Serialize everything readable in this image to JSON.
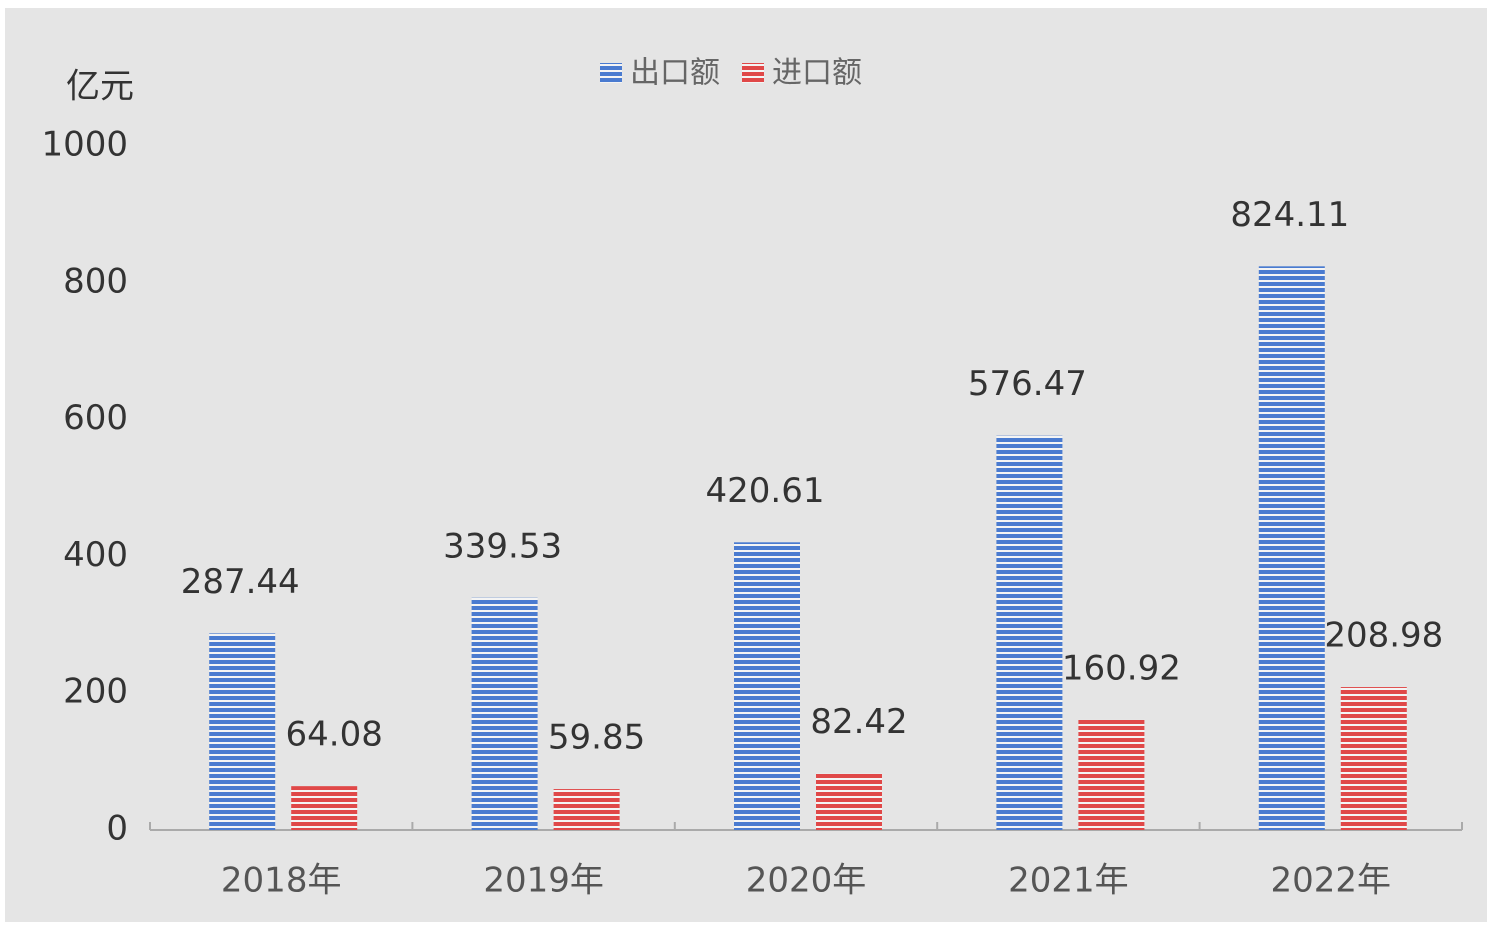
{
  "chart_data": {
    "type": "bar",
    "y_label": "亿元",
    "categories": [
      "2018年",
      "2019年",
      "2020年",
      "2021年",
      "2022年"
    ],
    "series": [
      {
        "name": "出口额",
        "color": "#4a7bd0",
        "values": [
          287.44,
          339.53,
          420.61,
          576.47,
          824.11
        ]
      },
      {
        "name": "进口额",
        "color": "#e04848",
        "values": [
          64.08,
          59.85,
          82.42,
          160.92,
          208.98
        ]
      }
    ],
    "ylim": [
      0,
      1000
    ],
    "yticks": [
      0,
      200,
      400,
      600,
      800,
      1000
    ],
    "grid": false
  }
}
